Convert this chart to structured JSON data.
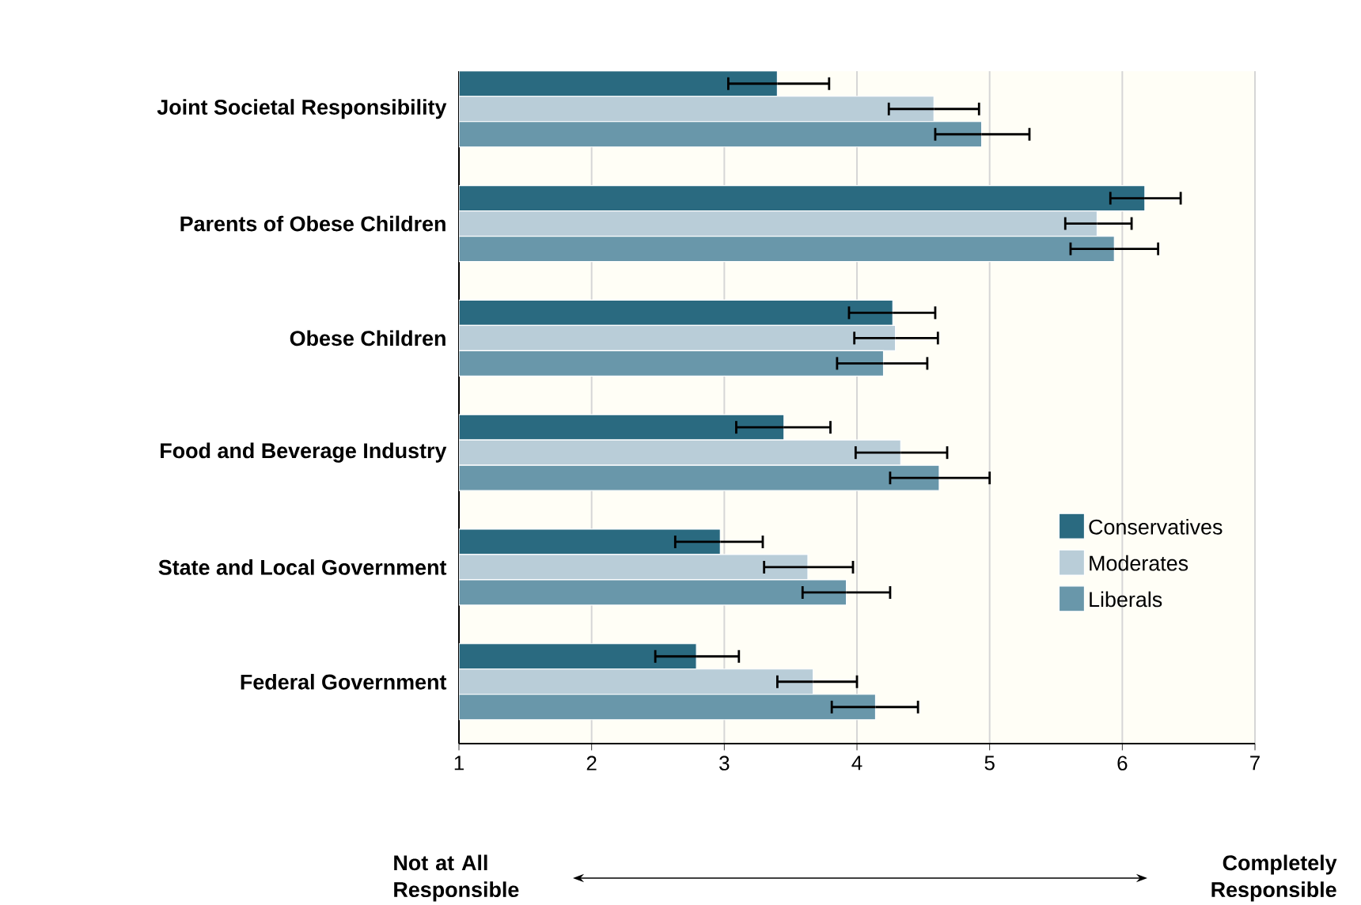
{
  "chart_data": {
    "type": "bar",
    "orientation": "horizontal",
    "categories": [
      "Joint Societal Responsibility",
      "Parents of Obese Children",
      "Obese Children",
      "Food and Beverage Industry",
      "State and Local Government",
      "Federal Government"
    ],
    "series": [
      {
        "name": "Conservatives",
        "color": "#2a6a80",
        "values": [
          3.4,
          6.17,
          4.27,
          3.45,
          2.97,
          2.79
        ],
        "errors": [
          [
            3.03,
            3.79
          ],
          [
            5.91,
            6.44
          ],
          [
            3.94,
            4.59
          ],
          [
            3.09,
            3.8
          ],
          [
            2.63,
            3.29
          ],
          [
            2.48,
            3.11
          ]
        ]
      },
      {
        "name": "Moderates",
        "color": "#b9cdd8",
        "values": [
          4.58,
          5.81,
          4.29,
          4.33,
          3.63,
          3.67
        ],
        "errors": [
          [
            4.24,
            4.92
          ],
          [
            5.57,
            6.07
          ],
          [
            3.98,
            4.61
          ],
          [
            3.99,
            4.68
          ],
          [
            3.3,
            3.97
          ],
          [
            3.4,
            4.0
          ]
        ]
      },
      {
        "name": "Liberals",
        "color": "#6997aa",
        "values": [
          4.94,
          5.94,
          4.2,
          4.62,
          3.92,
          4.14
        ],
        "errors": [
          [
            4.59,
            5.3
          ],
          [
            5.61,
            6.27
          ],
          [
            3.85,
            4.53
          ],
          [
            4.25,
            5.0
          ],
          [
            3.59,
            4.25
          ],
          [
            3.81,
            4.46
          ]
        ]
      }
    ],
    "xlim": [
      1,
      7
    ],
    "xticks": [
      1,
      2,
      3,
      4,
      5,
      6,
      7
    ],
    "grid": "x",
    "legend": "bottom right",
    "annotations": [
      "Not at All Responsible",
      "Completely Responsible"
    ]
  }
}
